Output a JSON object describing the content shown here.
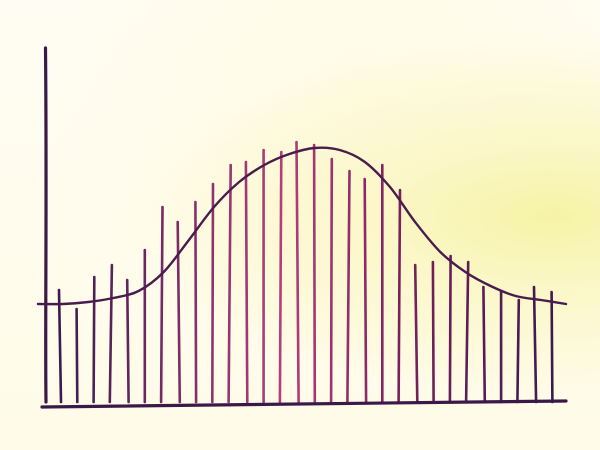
{
  "image": {
    "ink": {
      "axis": "#3a1848",
      "curve": "#4a1c4e",
      "bar_dark": "#3b1a4f",
      "bar_mid": "#7a1f5c",
      "bar_light": "#b33f7a"
    },
    "paper_tint": "#fbf7c8"
  },
  "chart_data": {
    "type": "bar",
    "title": "",
    "xlabel": "",
    "ylabel": "",
    "grid": false,
    "ylim": [
      0,
      300
    ],
    "values": [
      112,
      93,
      125,
      137,
      122,
      152,
      195,
      180,
      200,
      218,
      237,
      240,
      252,
      250,
      260,
      257,
      243,
      231,
      223,
      237,
      212,
      137,
      140,
      146,
      140,
      115,
      110,
      102,
      115,
      110
    ],
    "curve": {
      "style": "hand-drawn bell curve",
      "values": [
        108,
        108,
        110,
        114,
        121,
        140,
        172,
        205,
        230,
        247,
        258,
        264,
        262,
        250,
        225,
        190,
        160,
        140,
        126,
        116,
        112,
        108
      ]
    }
  }
}
